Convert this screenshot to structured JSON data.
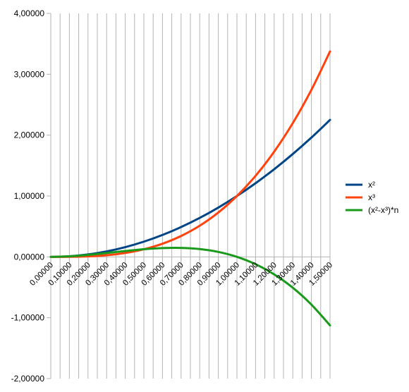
{
  "chart_data": {
    "type": "line",
    "xlim": [
      0,
      1.5
    ],
    "ylim": [
      -2,
      4
    ],
    "x_ticks": [
      "0,00000",
      "0,10000",
      "0,20000",
      "0,30000",
      "0,40000",
      "0,50000",
      "0,60000",
      "0,70000",
      "0,80000",
      "0,90000",
      "1,00000",
      "1,10000",
      "1,20000",
      "1,30000",
      "1,40000",
      "1,50000"
    ],
    "y_ticks": [
      "4,00000",
      "3,00000",
      "2,00000",
      "1,00000",
      "0,00000",
      "-1,00000",
      "-2,00000"
    ],
    "grid": "vertical",
    "legend_position": "right",
    "x": [
      0,
      0.1,
      0.2,
      0.3,
      0.4,
      0.5,
      0.6,
      0.7,
      0.8,
      0.9,
      1.0,
      1.1,
      1.2,
      1.3,
      1.4,
      1.5
    ],
    "series": [
      {
        "name": "x²",
        "color": "#004586",
        "values": [
          0,
          0.01,
          0.04,
          0.09,
          0.16,
          0.25,
          0.36,
          0.49,
          0.64,
          0.81,
          1.0,
          1.21,
          1.44,
          1.69,
          1.96,
          2.25
        ]
      },
      {
        "name": "x³",
        "color": "#ff420e",
        "values": [
          0,
          0.001,
          0.008,
          0.027,
          0.064,
          0.125,
          0.216,
          0.343,
          0.512,
          0.729,
          1.0,
          1.331,
          1.728,
          2.197,
          2.744,
          3.375
        ]
      },
      {
        "name": "(x²-x³)*n",
        "color": "#1a9a1a",
        "values": [
          0,
          0.009,
          0.032,
          0.063,
          0.096,
          0.125,
          0.144,
          0.147,
          0.128,
          0.081,
          0,
          -0.121,
          -0.288,
          -0.507,
          -0.784,
          -1.125
        ]
      }
    ]
  }
}
